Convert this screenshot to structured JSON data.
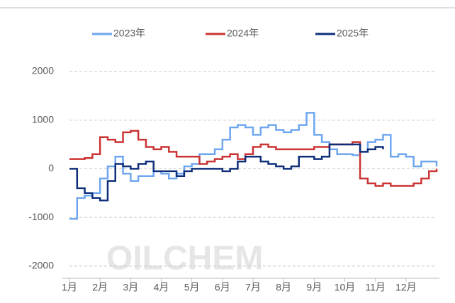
{
  "chart_data": {
    "type": "line",
    "watermark": "OILCHEM",
    "categories": [
      "1月",
      null,
      null,
      null,
      "2月",
      null,
      null,
      null,
      "3月",
      null,
      null,
      null,
      "4月",
      null,
      null,
      null,
      "5月",
      null,
      null,
      null,
      "6月",
      null,
      null,
      null,
      "7月",
      null,
      null,
      null,
      "8月",
      null,
      null,
      null,
      "9月",
      null,
      null,
      null,
      "10月",
      null,
      null,
      null,
      "11月",
      null,
      null,
      null,
      "12月",
      null,
      null,
      null,
      null
    ],
    "series": [
      {
        "name": "2023年",
        "color": "#6ea6f0",
        "values": [
          -1030,
          -600,
          -550,
          -500,
          -200,
          50,
          250,
          -100,
          -250,
          -150,
          -150,
          -50,
          -100,
          -200,
          -100,
          50,
          100,
          300,
          300,
          400,
          600,
          850,
          900,
          850,
          700,
          850,
          900,
          800,
          750,
          800,
          900,
          1150,
          700,
          550,
          400,
          300,
          300,
          280,
          350,
          550,
          600,
          700,
          250,
          300,
          250,
          50,
          150,
          150,
          50
        ]
      },
      {
        "name": "2024年",
        "color": "#cc3333",
        "values": [
          200,
          200,
          220,
          300,
          650,
          600,
          550,
          750,
          780,
          600,
          450,
          400,
          450,
          350,
          250,
          250,
          250,
          100,
          150,
          200,
          250,
          300,
          200,
          300,
          450,
          500,
          450,
          400,
          400,
          400,
          400,
          400,
          450,
          450,
          500,
          500,
          500,
          550,
          -200,
          -300,
          -350,
          -300,
          -350,
          -350,
          -350,
          -300,
          -200,
          -50,
          0
        ]
      },
      {
        "name": "2025年",
        "color": "#0d2f7a",
        "values": [
          0,
          -400,
          -500,
          -600,
          -650,
          -250,
          100,
          50,
          0,
          100,
          150,
          -50,
          -50,
          -50,
          -150,
          -50,
          0,
          0,
          0,
          0,
          -50,
          0,
          150,
          250,
          250,
          150,
          100,
          50,
          0,
          50,
          250,
          250,
          200,
          250,
          500,
          500,
          500,
          500,
          350,
          400,
          450,
          400,
          null,
          null,
          null,
          null,
          null,
          null,
          null
        ]
      }
    ],
    "ylim": [
      -2250,
      2000
    ],
    "yticks": [
      -2000,
      -1000,
      0,
      1000,
      2000
    ],
    "grid": true,
    "legend": "top"
  }
}
